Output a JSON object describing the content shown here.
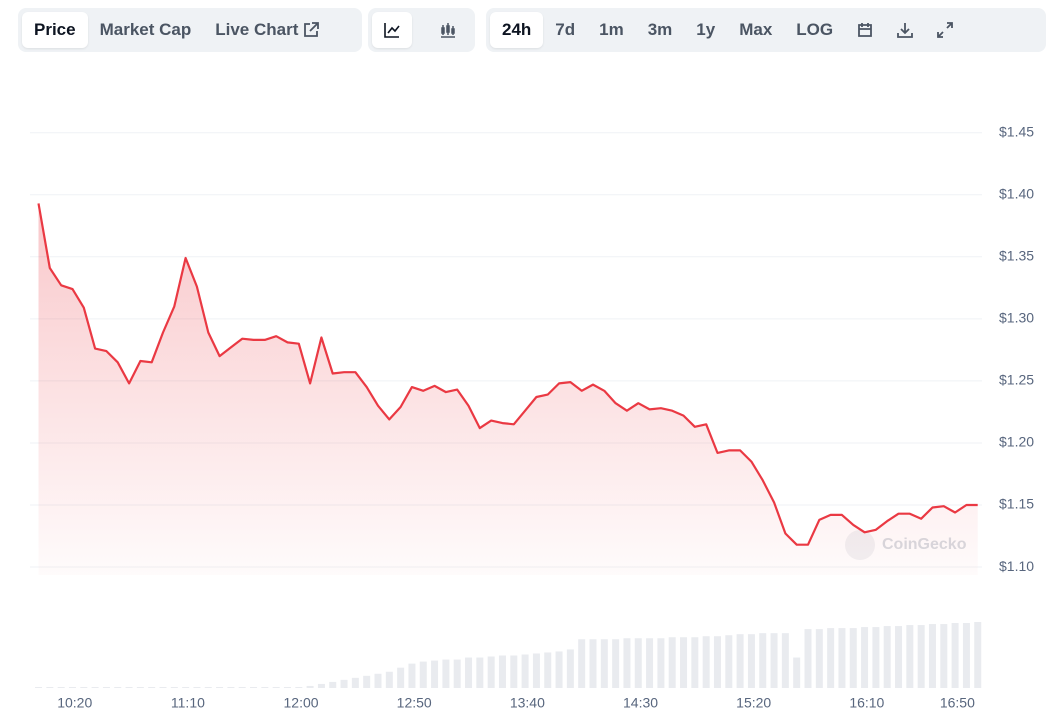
{
  "toolbar": {
    "view_tabs": [
      "Price",
      "Market Cap",
      "Live Chart"
    ],
    "range_tabs": [
      "24h",
      "7d",
      "1m",
      "3m",
      "1y",
      "Max",
      "LOG"
    ]
  },
  "chart_data": {
    "type": "line",
    "watermark": "CoinGecko",
    "color": "#ea3943",
    "volume_color": "#e9ebef",
    "x": [
      "10:04",
      "10:09",
      "10:14",
      "10:19",
      "10:24",
      "10:29",
      "10:34",
      "10:39",
      "10:44",
      "10:49",
      "10:54",
      "10:59",
      "11:04",
      "11:09",
      "11:14",
      "11:19",
      "11:24",
      "11:29",
      "11:34",
      "11:39",
      "11:44",
      "11:49",
      "11:54",
      "11:59",
      "12:04",
      "12:09",
      "12:14",
      "12:19",
      "12:24",
      "12:29",
      "12:34",
      "12:39",
      "12:44",
      "12:49",
      "12:54",
      "12:59",
      "13:04",
      "13:09",
      "13:14",
      "13:19",
      "13:24",
      "13:29",
      "13:34",
      "13:39",
      "13:44",
      "13:49",
      "13:54",
      "13:59",
      "14:04",
      "14:09",
      "14:14",
      "14:19",
      "14:24",
      "14:29",
      "14:34",
      "14:39",
      "14:44",
      "14:49",
      "14:54",
      "14:59",
      "15:04",
      "15:09",
      "15:14",
      "15:19",
      "15:24",
      "15:29",
      "15:34",
      "15:39",
      "15:44",
      "15:49",
      "15:54",
      "15:59",
      "16:04",
      "16:09",
      "16:14",
      "16:19",
      "16:24",
      "16:29",
      "16:34",
      "16:39",
      "16:44",
      "16:49",
      "16:54",
      "16:59"
    ],
    "values": [
      1.393,
      1.341,
      1.327,
      1.324,
      1.309,
      1.276,
      1.274,
      1.265,
      1.248,
      1.266,
      1.265,
      1.289,
      1.31,
      1.349,
      1.326,
      1.289,
      1.27,
      1.277,
      1.284,
      1.283,
      1.283,
      1.286,
      1.281,
      1.28,
      1.248,
      1.285,
      1.256,
      1.257,
      1.257,
      1.245,
      1.23,
      1.219,
      1.229,
      1.245,
      1.242,
      1.246,
      1.241,
      1.243,
      1.23,
      1.212,
      1.218,
      1.216,
      1.215,
      1.226,
      1.237,
      1.239,
      1.248,
      1.249,
      1.242,
      1.247,
      1.242,
      1.232,
      1.226,
      1.232,
      1.227,
      1.228,
      1.226,
      1.222,
      1.213,
      1.215,
      1.192,
      1.194,
      1.194,
      1.185,
      1.17,
      1.152,
      1.127,
      1.118,
      1.118,
      1.138,
      1.142,
      1.142,
      1.134,
      1.128,
      1.13,
      1.137,
      1.143,
      1.143,
      1.139,
      1.148,
      1.149,
      1.144,
      1.15,
      1.15
    ],
    "volume": [
      1,
      1,
      1,
      1,
      1,
      1,
      1,
      1,
      1,
      1,
      1,
      1,
      1,
      1,
      1,
      1,
      1,
      1,
      1,
      1,
      1,
      1,
      1,
      1,
      2,
      4,
      6,
      8,
      10,
      12,
      14,
      16,
      20,
      24,
      26,
      27,
      28,
      28,
      30,
      30,
      31,
      32,
      32,
      33,
      34,
      35,
      36,
      38,
      48,
      48,
      48,
      48,
      49,
      49,
      49,
      49,
      50,
      50,
      50,
      51,
      51,
      52,
      53,
      53,
      54,
      54,
      54,
      30,
      58,
      58,
      59,
      59,
      59,
      60,
      60,
      61,
      61,
      62,
      62,
      63,
      63,
      64,
      64,
      65
    ],
    "xlim": [
      "10:02",
      "17:00"
    ],
    "xticks": [
      "10:20",
      "11:10",
      "12:00",
      "12:50",
      "13:40",
      "14:30",
      "15:20",
      "16:10",
      "16:50"
    ],
    "ylim": [
      1.0985,
      1.4765
    ],
    "yticks": [
      {
        "value": 1.1,
        "label": "$1.10"
      },
      {
        "value": 1.15,
        "label": "$1.15"
      },
      {
        "value": 1.2,
        "label": "$1.20"
      },
      {
        "value": 1.25,
        "label": "$1.25"
      },
      {
        "value": 1.3,
        "label": "$1.30"
      },
      {
        "value": 1.35,
        "label": "$1.35"
      },
      {
        "value": 1.4,
        "label": "$1.40"
      },
      {
        "value": 1.45,
        "label": "$1.45"
      }
    ],
    "grid": true
  }
}
